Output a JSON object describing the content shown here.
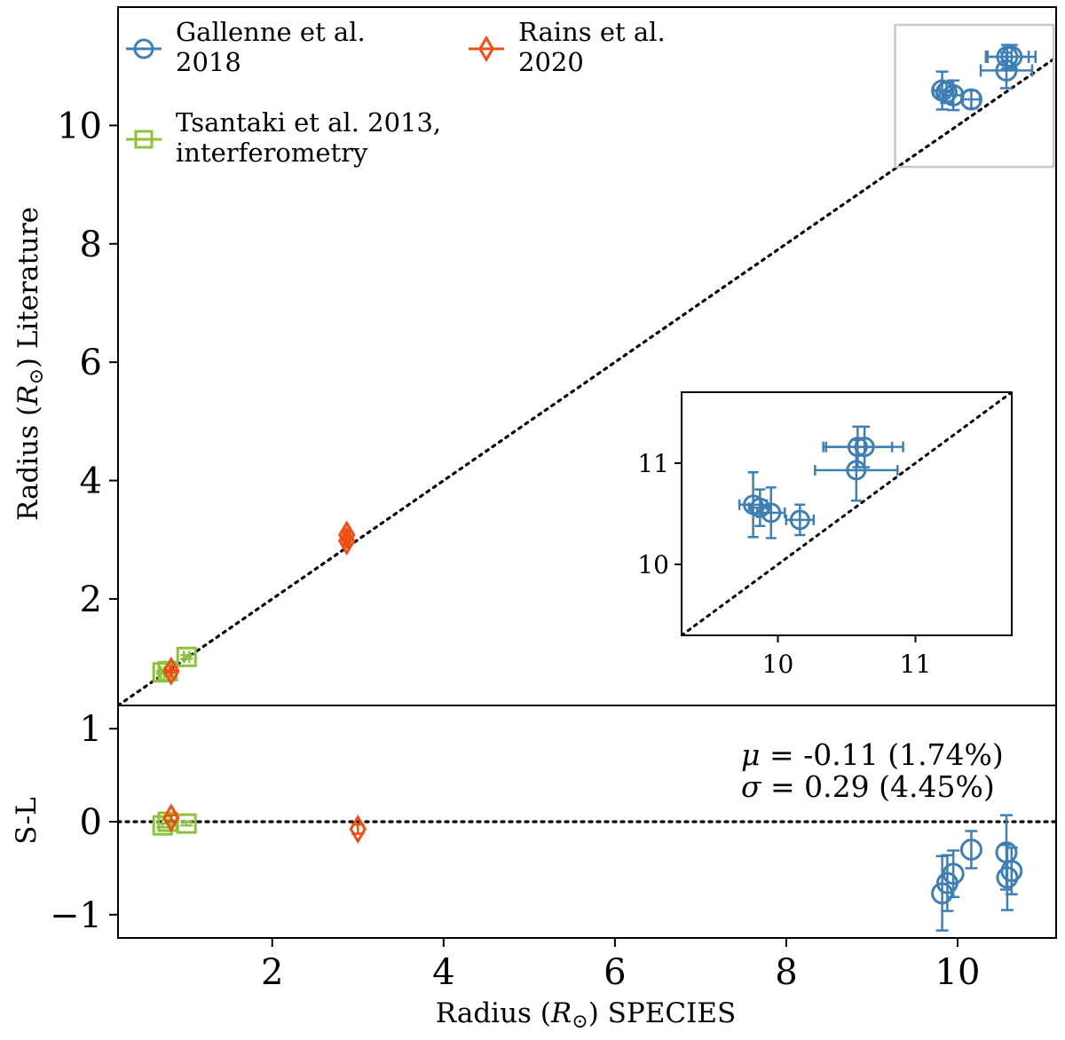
{
  "chart_data": {
    "type": "scatter",
    "colors": {
      "gallenne": "#3f7fb5",
      "tsantaki": "#8ac43a",
      "rains": "#f04e12",
      "inset_box": "#c8c8c8"
    },
    "x_axis": {
      "label": "Radius (R⊙) SPECIES",
      "lim": [
        0.2,
        11.15
      ],
      "ticks": [
        2,
        4,
        6,
        8,
        10
      ]
    },
    "top_panel": {
      "ylabel": "Radius (R⊙) Literature",
      "ylim": [
        0.2,
        12.0
      ],
      "yticks": [
        2,
        4,
        6,
        8,
        10
      ],
      "one_to_one_line": true,
      "highlight_box": {
        "x": [
          9.27,
          11.12
        ],
        "y": [
          9.3,
          11.7
        ]
      },
      "legend": [
        {
          "series": "gallenne",
          "marker": "circle",
          "line1": "Gallenne et al.",
          "line2": "2018"
        },
        {
          "series": "rains",
          "marker": "diamond",
          "line1": "Rains et al.",
          "line2": "2020"
        },
        {
          "series": "tsantaki",
          "marker": "square",
          "line1": "Tsantaki et al. 2013,",
          "line2": "interferometry"
        }
      ],
      "series": [
        {
          "name": "Gallenne et al. 2018",
          "key": "gallenne",
          "marker": "circle",
          "points": [
            {
              "x": 9.82,
              "y": 10.59,
              "xerr": 0.1,
              "yerr": 0.32
            },
            {
              "x": 9.87,
              "y": 10.56,
              "xerr": 0.08,
              "yerr": 0.18
            },
            {
              "x": 9.95,
              "y": 10.51,
              "xerr": 0.1,
              "yerr": 0.25
            },
            {
              "x": 10.16,
              "y": 10.44,
              "xerr": 0.1,
              "yerr": 0.15
            },
            {
              "x": 10.57,
              "y": 10.93,
              "xerr": 0.3,
              "yerr": 0.3
            },
            {
              "x": 10.58,
              "y": 11.16,
              "xerr": 0.25,
              "yerr": 0.2
            },
            {
              "x": 10.63,
              "y": 11.16,
              "xerr": 0.28,
              "yerr": 0.2
            }
          ]
        },
        {
          "name": "Tsantaki et al. 2013, interferometry",
          "key": "tsantaki",
          "marker": "square",
          "points": [
            {
              "x": 0.72,
              "y": 0.76,
              "xerr": 0.02,
              "yerr": 0.02
            },
            {
              "x": 0.78,
              "y": 0.78,
              "xerr": 0.02,
              "yerr": 0.02
            },
            {
              "x": 1.0,
              "y": 1.02,
              "xerr": 0.03,
              "yerr": 0.03
            }
          ]
        },
        {
          "name": "Rains et al. 2020",
          "key": "rains",
          "marker": "diamond",
          "points": [
            {
              "x": 0.82,
              "y": 0.78,
              "xerr": 0.01,
              "yerr": 0.02
            },
            {
              "x": 2.87,
              "y": 3.08,
              "xerr": 0.02,
              "yerr": 0.06
            },
            {
              "x": 2.87,
              "y": 2.98,
              "xerr": 0.02,
              "yerr": 0.06
            }
          ]
        }
      ]
    },
    "inset": {
      "xlim": [
        9.3,
        11.7
      ],
      "ylim": [
        9.3,
        11.7
      ],
      "xticks": [
        10,
        11
      ],
      "yticks": [
        10,
        11
      ],
      "one_to_one_line": true,
      "series_key": "gallenne"
    },
    "bottom_panel": {
      "ylabel": "S-L",
      "ylim": [
        -1.25,
        1.25
      ],
      "yticks": [
        -1,
        0,
        1
      ],
      "ytick_labels": [
        "−1",
        "0",
        "1"
      ],
      "zero_line": true,
      "stats": {
        "mu_label": "μ = -0.11 (1.74%)",
        "sigma_label": "σ = 0.29 (4.45%)"
      },
      "series": [
        {
          "key": "gallenne",
          "marker": "circle",
          "points": [
            {
              "x": 9.82,
              "y": -0.77,
              "yerr": 0.4
            },
            {
              "x": 9.88,
              "y": -0.66,
              "yerr": 0.3
            },
            {
              "x": 9.95,
              "y": -0.56,
              "yerr": 0.25
            },
            {
              "x": 10.16,
              "y": -0.3,
              "yerr": 0.2
            },
            {
              "x": 10.57,
              "y": -0.33,
              "yerr": 0.4
            },
            {
              "x": 10.58,
              "y": -0.6,
              "yerr": 0.35
            },
            {
              "x": 10.63,
              "y": -0.53,
              "yerr": 0.25
            }
          ]
        },
        {
          "key": "tsantaki",
          "marker": "square",
          "points": [
            {
              "x": 0.72,
              "y": -0.04,
              "yerr": 0.02
            },
            {
              "x": 0.78,
              "y": 0.0,
              "yerr": 0.02
            },
            {
              "x": 1.0,
              "y": -0.02,
              "yerr": 0.02
            }
          ]
        },
        {
          "key": "rains",
          "marker": "diamond",
          "points": [
            {
              "x": 0.82,
              "y": 0.04,
              "yerr": 0.03
            },
            {
              "x": 3.0,
              "y": -0.08,
              "yerr": 0.05
            }
          ]
        }
      ]
    }
  }
}
